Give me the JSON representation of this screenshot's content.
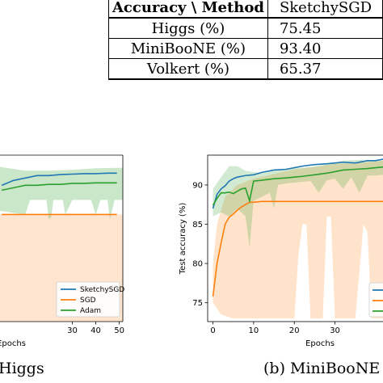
{
  "table": {
    "header": [
      "Accuracy \\ Method",
      "SketchySGD"
    ],
    "rows": [
      [
        "Higgs (%)",
        "75.45"
      ],
      [
        "MiniBooNE (%)",
        "93.40"
      ],
      [
        "Volkert (%)",
        "65.37"
      ]
    ]
  },
  "captions": {
    "left": "Higgs",
    "right": "(b) MiniBooNE"
  },
  "colors": {
    "sketchysgd": "#1f77b4",
    "sgd": "#ff7f0e",
    "adam": "#2ca02c"
  },
  "chart_data": [
    {
      "type": "line",
      "title": "",
      "xlabel": "Epochs",
      "ylabel": "",
      "x_ticks": [
        30,
        40,
        50
      ],
      "legend": [
        "SketchySGD",
        "SGD",
        "Adam"
      ],
      "legend_position": "lower-right",
      "series": [
        {
          "name": "SketchySGD",
          "x": [
            0,
            5,
            10,
            15,
            20,
            25,
            30,
            35,
            40,
            45,
            49
          ],
          "y": [
            75.2,
            75.3,
            75.35,
            75.4,
            75.4,
            75.42,
            75.43,
            75.44,
            75.44,
            75.45,
            75.45
          ]
        },
        {
          "name": "SGD",
          "x": [
            0,
            5,
            10,
            15,
            20,
            25,
            30,
            35,
            40,
            45,
            49
          ],
          "y": [
            74.6,
            74.6,
            74.6,
            74.6,
            74.6,
            74.6,
            74.6,
            74.6,
            74.6,
            74.6,
            74.6
          ]
        },
        {
          "name": "Adam",
          "x": [
            0,
            5,
            10,
            15,
            20,
            25,
            30,
            35,
            40,
            45,
            49
          ],
          "y": [
            75.1,
            75.15,
            75.2,
            75.2,
            75.22,
            75.22,
            75.24,
            75.24,
            75.25,
            75.25,
            75.25
          ]
        }
      ]
    },
    {
      "type": "line",
      "title": "",
      "xlabel": "Epochs",
      "ylabel": "Test accuracy (%)",
      "y_ticks": [
        75,
        80,
        85,
        90
      ],
      "x_ticks": [
        0,
        10,
        20,
        30
      ],
      "ylim": [
        72.6,
        93.8
      ],
      "legend_position": "lower-right",
      "series": [
        {
          "name": "SketchySGD",
          "x": [
            0,
            1,
            2,
            3,
            4,
            5,
            6,
            8,
            10,
            12,
            15,
            18,
            20,
            22,
            25,
            28,
            30,
            32,
            35,
            38,
            40,
            42
          ],
          "y": [
            87.0,
            88.8,
            89.5,
            89.9,
            90.5,
            90.8,
            91.0,
            91.2,
            91.3,
            91.6,
            91.9,
            92.0,
            92.2,
            92.4,
            92.6,
            92.7,
            92.8,
            92.9,
            92.8,
            93.1,
            93.1,
            93.3
          ]
        },
        {
          "name": "SGD",
          "x": [
            0,
            1,
            2,
            3,
            4,
            5,
            6,
            7,
            8,
            9,
            10,
            12,
            15,
            20,
            25,
            30,
            35,
            40,
            42
          ],
          "y": [
            75.8,
            80.0,
            82.6,
            85.0,
            85.9,
            86.3,
            86.8,
            87.2,
            87.5,
            87.8,
            87.8,
            87.9,
            87.9,
            87.9,
            87.9,
            87.9,
            87.9,
            87.9,
            87.9
          ]
        },
        {
          "name": "Adam",
          "x": [
            0,
            1,
            2,
            3,
            4,
            5,
            6,
            7,
            8,
            9,
            10,
            12,
            15,
            18,
            20,
            22,
            25,
            28,
            30,
            32,
            35,
            38,
            40,
            42
          ],
          "y": [
            87.4,
            88.3,
            89.0,
            89.0,
            89.1,
            88.9,
            89.2,
            89.5,
            89.6,
            88.0,
            90.5,
            90.6,
            90.8,
            90.9,
            91.0,
            91.1,
            91.3,
            91.5,
            91.7,
            91.9,
            92.0,
            92.1,
            92.2,
            92.3
          ]
        }
      ]
    }
  ]
}
